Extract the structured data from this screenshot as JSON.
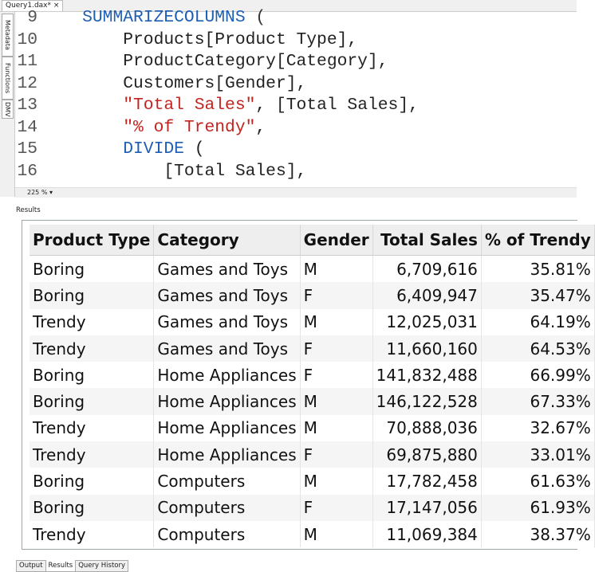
{
  "doc_tab": {
    "title": "Query1.dax*",
    "close": "×"
  },
  "side_tabs": [
    "Metadata",
    "Functions",
    "DMV"
  ],
  "editor": {
    "lines": [
      {
        "number": "9",
        "tokens": [
          {
            "text": "SUMMARIZECOLUMNS",
            "color": "#1e5fb3"
          },
          {
            "text": " (",
            "color": "#333333"
          }
        ]
      },
      {
        "number": "10",
        "tokens": [
          {
            "text": "Products[Product Type],",
            "color": "#222222"
          }
        ]
      },
      {
        "number": "11",
        "tokens": [
          {
            "text": "ProductCategory[Category],",
            "color": "#222222"
          }
        ]
      },
      {
        "number": "12",
        "tokens": [
          {
            "text": "Customers[Gender],",
            "color": "#222222"
          }
        ]
      },
      {
        "number": "13",
        "tokens": [
          {
            "text": "\"Total Sales\"",
            "color": "#c3241f"
          },
          {
            "text": ", [Total Sales],",
            "color": "#222222"
          }
        ]
      },
      {
        "number": "14",
        "tokens": [
          {
            "text": "\"% of Trendy\"",
            "color": "#c3241f"
          },
          {
            "text": ",",
            "color": "#222222"
          }
        ]
      },
      {
        "number": "15",
        "tokens": [
          {
            "text": "DIVIDE",
            "color": "#1e5fb3"
          },
          {
            "text": " (",
            "color": "#222222"
          }
        ]
      },
      {
        "number": "16",
        "tokens": [
          {
            "text": "[Total Sales],",
            "color": "#222222"
          }
        ]
      }
    ],
    "zoom": "225 %"
  },
  "results_label": "Results",
  "table": {
    "columns": [
      "Product Type",
      "Category",
      "Gender",
      "Total Sales",
      "% of Trendy"
    ],
    "rows": [
      [
        "Boring",
        "Games and Toys",
        "M",
        "6,709,616",
        "35.81%"
      ],
      [
        "Boring",
        "Games and Toys",
        "F",
        "6,409,947",
        "35.47%"
      ],
      [
        "Trendy",
        "Games and Toys",
        "M",
        "12,025,031",
        "64.19%"
      ],
      [
        "Trendy",
        "Games and Toys",
        "F",
        "11,660,160",
        "64.53%"
      ],
      [
        "Boring",
        "Home Appliances",
        "F",
        "141,832,488",
        "66.99%"
      ],
      [
        "Boring",
        "Home Appliances",
        "M",
        "146,122,528",
        "67.33%"
      ],
      [
        "Trendy",
        "Home Appliances",
        "M",
        "70,888,036",
        "32.67%"
      ],
      [
        "Trendy",
        "Home Appliances",
        "F",
        "69,875,880",
        "33.01%"
      ],
      [
        "Boring",
        "Computers",
        "M",
        "17,782,458",
        "61.63%"
      ],
      [
        "Boring",
        "Computers",
        "F",
        "17,147,056",
        "61.93%"
      ],
      [
        "Trendy",
        "Computers",
        "M",
        "11,069,384",
        "38.37%"
      ]
    ]
  },
  "bottom_tabs": [
    "Output",
    "Results",
    "Query History"
  ]
}
